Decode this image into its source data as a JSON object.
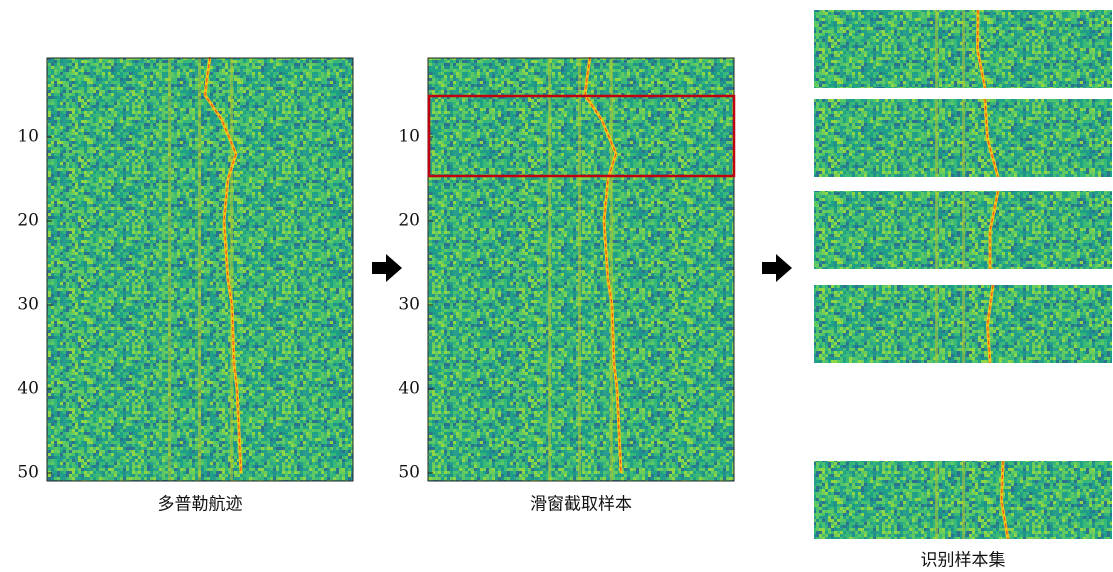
{
  "panels": [
    {
      "caption": "多普勒航迹",
      "yticks": [
        10,
        20,
        30,
        40,
        50
      ]
    },
    {
      "caption": "滑窗截取样本",
      "yticks": [
        10,
        20,
        30,
        40,
        50
      ]
    }
  ],
  "samples": {
    "caption": "识别样本集"
  }
}
